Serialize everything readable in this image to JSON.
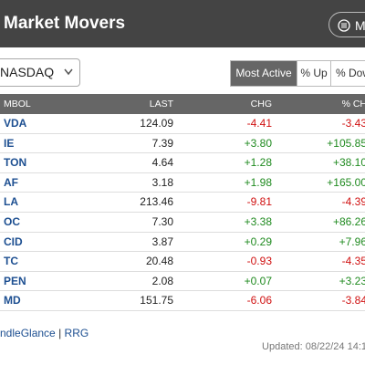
{
  "header": {
    "title": "Market Movers",
    "menu_button": "Mo"
  },
  "controls": {
    "exchange": "NASDAQ",
    "tabs": [
      "Most Active",
      "% Up",
      "% Dow"
    ]
  },
  "table": {
    "columns": [
      "MBOL",
      "LAST",
      "CHG",
      "% CH"
    ],
    "rows": [
      [
        "VDA",
        "124.09",
        "-4.41",
        "-3.43"
      ],
      [
        "IE",
        "7.39",
        "+3.80",
        "+105.85"
      ],
      [
        "TON",
        "4.64",
        "+1.28",
        "+38.10"
      ],
      [
        "AF",
        "3.18",
        "+1.98",
        "+165.00"
      ],
      [
        "LA",
        "213.46",
        "-9.81",
        "-4.39"
      ],
      [
        "OC",
        "7.30",
        "+3.38",
        "+86.26"
      ],
      [
        "CID",
        "3.87",
        "+0.29",
        "+7.96"
      ],
      [
        "TC",
        "20.48",
        "-0.93",
        "-4.35"
      ],
      [
        "PEN",
        "2.08",
        "+0.07",
        "+3.23"
      ],
      [
        "MD",
        "151.75",
        "-6.06",
        "-3.84"
      ]
    ]
  },
  "footer": {
    "links": [
      "ndleGlance",
      "RRG"
    ],
    "separator": "|",
    "updated": "Updated: 08/22/24 14:1"
  }
}
